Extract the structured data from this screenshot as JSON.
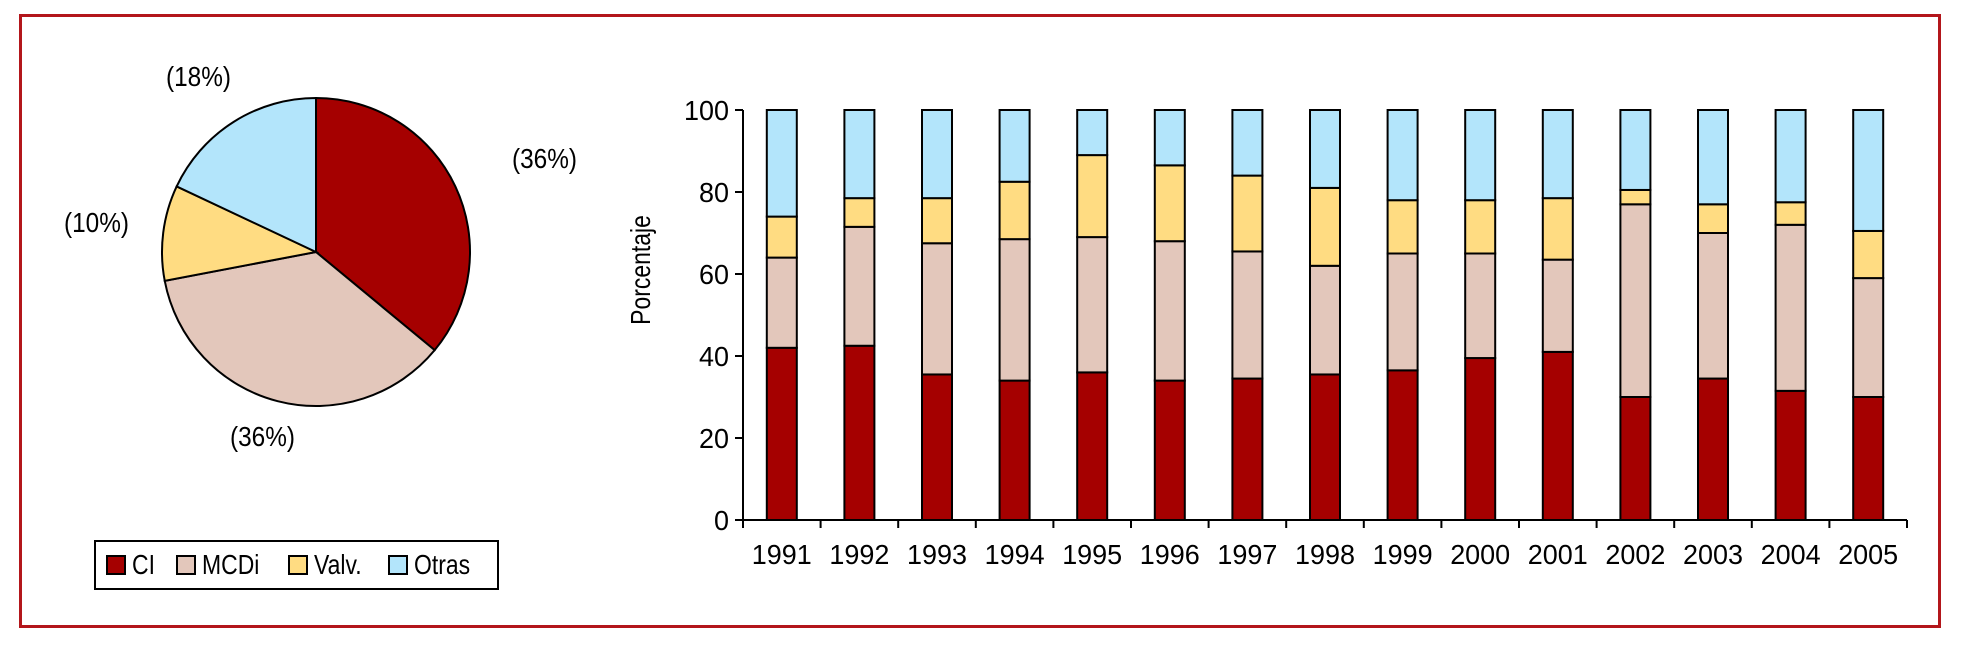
{
  "colors": {
    "border": "#b3161b",
    "CI": "#a50000",
    "MCDi": "#e3c7bb",
    "Valv": "#ffdc82",
    "Otras": "#b3e5fb"
  },
  "chart_data": [
    {
      "type": "pie",
      "slices": [
        {
          "name": "CI",
          "value": 36,
          "label": "(36%)",
          "color": "#a50000"
        },
        {
          "name": "MCDi",
          "value": 36,
          "label": "(36%)",
          "color": "#e3c7bb"
        },
        {
          "name": "Valv.",
          "value": 10,
          "label": "(10%)",
          "color": "#ffdc82"
        },
        {
          "name": "Otras",
          "value": 18,
          "label": "(18%)",
          "color": "#b3e5fb"
        }
      ],
      "legend": {
        "placement": "bottom",
        "items": [
          {
            "label": "CI",
            "color": "#a50000"
          },
          {
            "label": "MCDi",
            "color": "#e3c7bb"
          },
          {
            "label": "Valv.",
            "color": "#ffdc82"
          },
          {
            "label": "Otras",
            "color": "#b3e5fb"
          }
        ]
      }
    },
    {
      "type": "bar",
      "stacked": true,
      "categories": [
        "1991",
        "1992",
        "1993",
        "1994",
        "1995",
        "1996",
        "1997",
        "1998",
        "1999",
        "2000",
        "2001",
        "2002",
        "2003",
        "2004",
        "2005"
      ],
      "series": [
        {
          "name": "CI",
          "color": "#a50000",
          "values": [
            42,
            42.5,
            35.5,
            34,
            36,
            34,
            34.5,
            35.5,
            36.5,
            39.5,
            41,
            30,
            34.5,
            31.5,
            30
          ]
        },
        {
          "name": "MCDi",
          "color": "#e3c7bb",
          "values": [
            22,
            29,
            32,
            34.5,
            33,
            34,
            31,
            26.5,
            28.5,
            25.5,
            22.5,
            47,
            35.5,
            40.5,
            29
          ]
        },
        {
          "name": "Valv.",
          "color": "#ffdc82",
          "values": [
            10,
            7,
            11,
            14,
            20,
            18.5,
            18.5,
            19,
            13,
            13,
            15,
            3.5,
            7,
            5.5,
            11.5
          ]
        },
        {
          "name": "Otras",
          "color": "#b3e5fb",
          "values": [
            26,
            21.5,
            21.5,
            17.5,
            11,
            13.5,
            16,
            19,
            22,
            22,
            21.5,
            19.5,
            23,
            22.5,
            29.5
          ]
        }
      ],
      "ylabel": "Porcentaje",
      "xlabel": "",
      "ylim": [
        0,
        100
      ],
      "yticks": [
        "0",
        "20",
        "40",
        "60",
        "80",
        "100"
      ],
      "grid": false
    }
  ]
}
